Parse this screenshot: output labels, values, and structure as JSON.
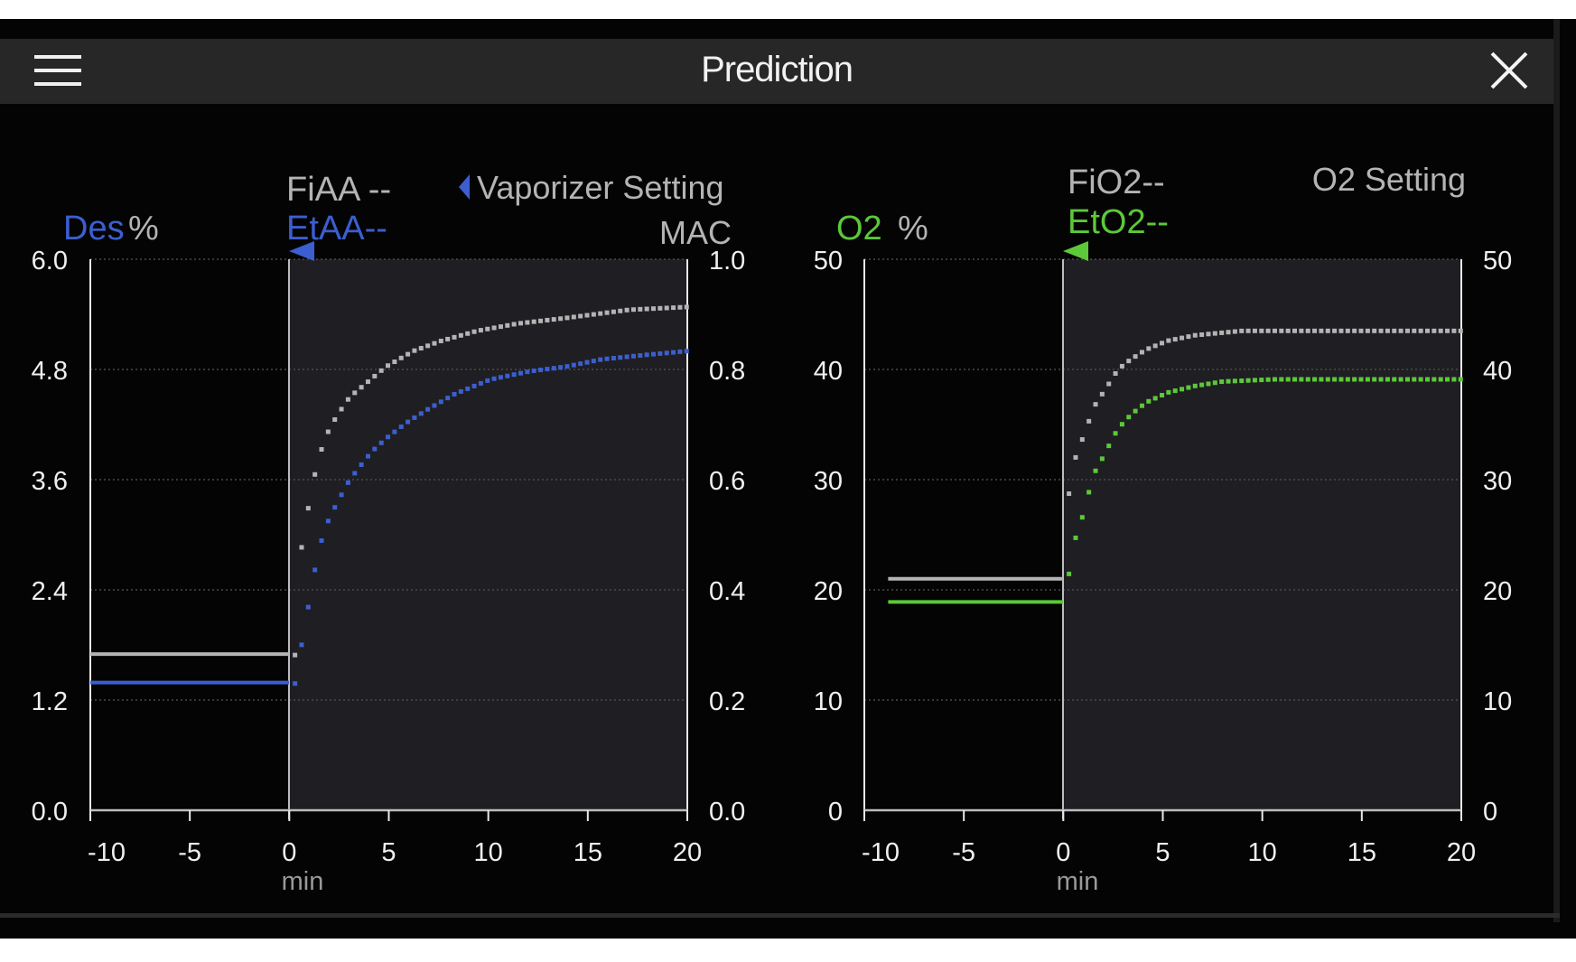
{
  "header": {
    "title": "Prediction",
    "menu_icon": "hamburger-icon",
    "close_icon": "close-icon"
  },
  "colors": {
    "agent": "#3b5fd0",
    "o2": "#5cc83a",
    "inspired": "#b4b4b4",
    "axis": "#f0f0f0",
    "future_bg": "#1f1e22"
  },
  "chart_data": [
    {
      "type": "line",
      "title": "",
      "agent_label": "Des",
      "unit_label": "%",
      "fi_label": "FiAA --",
      "et_label": "EtAA--",
      "setting_label": "Vaporizer Setting",
      "right_axis_label": "MAC",
      "xlabel": "min",
      "xlim": [
        -10,
        20
      ],
      "ylim": [
        0,
        6.0
      ],
      "y2lim": [
        0,
        1.0
      ],
      "x_ticks": [
        "-10",
        "-5",
        "0",
        "5",
        "10",
        "15",
        "20"
      ],
      "y_ticks": [
        "0.0",
        "1.2",
        "2.4",
        "3.6",
        "4.8",
        "6.0"
      ],
      "y2_ticks": [
        "0.0",
        "0.2",
        "0.4",
        "0.6",
        "0.8",
        "1.0"
      ],
      "grid": true,
      "series": [
        {
          "name": "FiAA",
          "color_key": "inspired",
          "history": {
            "x": [
              -10,
              0
            ],
            "y": [
              1.7,
              1.7
            ]
          },
          "prediction": {
            "x": [
              0,
              0.3,
              0.6,
              1.03,
              1.36,
              1.66,
              2.0,
              2.42,
              3.05,
              3.82,
              4.87,
              6.24,
              7.63,
              9.45,
              11.5,
              13.9,
              17.1,
              20
            ],
            "y": [
              1.7,
              1.69,
              2.82,
              3.37,
              3.72,
              3.95,
              4.14,
              4.3,
              4.5,
              4.64,
              4.83,
              5.0,
              5.11,
              5.22,
              5.3,
              5.36,
              5.45,
              5.48
            ]
          }
        },
        {
          "name": "EtAA",
          "color_key": "agent",
          "history": {
            "x": [
              -10,
              0
            ],
            "y": [
              1.39,
              1.39
            ]
          },
          "prediction": {
            "x": [
              0,
              0.3,
              0.6,
              1.03,
              1.36,
              1.66,
              2.0,
              2.42,
              3.05,
              3.48,
              4.13,
              4.88,
              5.9,
              7.0,
              8.3,
              10.1,
              12.1,
              13.9,
              15.7,
              18.0,
              20
            ],
            "y": [
              1.39,
              1.38,
              1.76,
              2.29,
              2.69,
              2.96,
              3.17,
              3.35,
              3.6,
              3.72,
              3.9,
              4.05,
              4.22,
              4.37,
              4.53,
              4.69,
              4.78,
              4.83,
              4.91,
              4.96,
              5.0
            ]
          }
        }
      ]
    },
    {
      "type": "line",
      "title": "",
      "agent_label": "O2",
      "unit_label": "%",
      "fi_label": "FiO2--",
      "et_label": "EtO2--",
      "setting_label": "O2 Setting",
      "xlabel": "min",
      "xlim": [
        -10,
        20
      ],
      "ylim": [
        0,
        50
      ],
      "x_ticks": [
        "-10",
        "-5",
        "0",
        "5",
        "10",
        "15",
        "20"
      ],
      "y_ticks": [
        "0",
        "10",
        "20",
        "30",
        "40",
        "50"
      ],
      "y2_ticks": [
        "0",
        "10",
        "20",
        "30",
        "40",
        "50"
      ],
      "grid": true,
      "series": [
        {
          "name": "FiO2",
          "color_key": "inspired",
          "history": {
            "x": [
              -8.8,
              0
            ],
            "y": [
              21.0,
              21.0
            ]
          },
          "prediction": {
            "x": [
              0,
              0.33,
              0.63,
              1.06,
              1.36,
              1.67,
              2.1,
              2.44,
              2.73,
              3.09,
              3.48,
              4.17,
              5.25,
              6.63,
              8.99,
              20
            ],
            "y": [
              21.0,
              29.5,
              32.0,
              34.1,
              35.6,
              37.0,
              38.1,
              39.1,
              39.9,
              40.5,
              41.0,
              41.8,
              42.6,
              43.1,
              43.5,
              43.5
            ]
          }
        },
        {
          "name": "EtO2",
          "color_key": "o2",
          "history": {
            "x": [
              -8.8,
              0
            ],
            "y": [
              18.9,
              18.9
            ]
          },
          "prediction": {
            "x": [
              0,
              0.33,
              0.63,
              1.06,
              1.36,
              1.67,
              2.1,
              2.44,
              2.73,
              3.09,
              3.48,
              4.17,
              5.25,
              6.63,
              8.0,
              10.6,
              20
            ],
            "y": [
              18.9,
              21.7,
              24.7,
              27.1,
              29.3,
              31.0,
              32.3,
              33.6,
              34.5,
              35.3,
              36.0,
              37.0,
              37.9,
              38.5,
              38.9,
              39.1,
              39.1
            ]
          }
        }
      ]
    }
  ]
}
